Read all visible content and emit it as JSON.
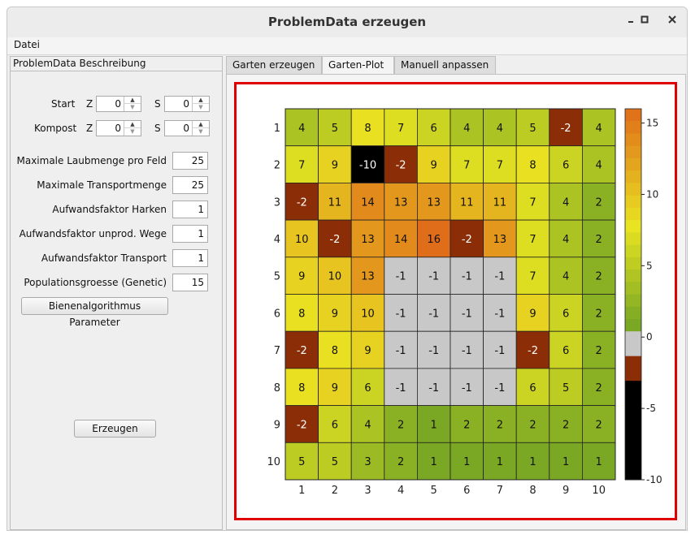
{
  "window": {
    "title": "ProblemData erzeugen",
    "minimize_icon": "minimize-icon",
    "maximize_icon": "maximize-icon",
    "close_icon": "close-icon"
  },
  "menu": {
    "file": "Datei"
  },
  "left": {
    "title": "ProblemData Beschreibung",
    "start_label": "Start",
    "kompost_label": "Kompost",
    "z_label": "Z",
    "s_label": "S",
    "start_z": "0",
    "start_s": "0",
    "kompost_z": "0",
    "kompost_s": "0",
    "params": [
      {
        "label": "Maximale Laubmenge pro Feld",
        "value": "25"
      },
      {
        "label": "Maximale Transportmenge",
        "value": "25"
      },
      {
        "label": "Aufwandsfaktor Harken",
        "value": "1"
      },
      {
        "label": "Aufwandsfaktor unprod. Wege",
        "value": "1"
      },
      {
        "label": "Aufwandsfaktor Transport",
        "value": "1"
      },
      {
        "label": "Populationsgroesse (Genetic)",
        "value": "15"
      }
    ],
    "bee_button": "Bienenalgorithmus Parameter",
    "generate_button": "Erzeugen"
  },
  "tabs": [
    "Garten erzeugen",
    "Garten-Plot",
    "Manuell anpassen"
  ],
  "active_tab": 1,
  "chart_data": {
    "type": "heatmap",
    "x_ticks": [
      "1",
      "2",
      "3",
      "4",
      "5",
      "6",
      "7",
      "8",
      "9",
      "10"
    ],
    "y_ticks": [
      "1",
      "2",
      "3",
      "4",
      "5",
      "6",
      "7",
      "8",
      "9",
      "10"
    ],
    "values": [
      [
        4,
        5,
        8,
        7,
        6,
        4,
        4,
        5,
        -2,
        4
      ],
      [
        7,
        9,
        -10,
        -2,
        9,
        7,
        7,
        8,
        6,
        4
      ],
      [
        -2,
        11,
        14,
        13,
        13,
        11,
        11,
        7,
        4,
        2
      ],
      [
        10,
        -2,
        13,
        14,
        16,
        -2,
        13,
        7,
        4,
        2
      ],
      [
        9,
        10,
        13,
        -1,
        -1,
        -1,
        -1,
        7,
        4,
        2
      ],
      [
        8,
        9,
        10,
        -1,
        -1,
        -1,
        -1,
        9,
        6,
        2
      ],
      [
        -2,
        8,
        9,
        -1,
        -1,
        -1,
        -1,
        -2,
        6,
        2
      ],
      [
        8,
        9,
        6,
        -1,
        -1,
        -1,
        -1,
        6,
        5,
        2
      ],
      [
        -2,
        6,
        4,
        2,
        1,
        2,
        2,
        2,
        2,
        2
      ],
      [
        5,
        5,
        3,
        2,
        1,
        1,
        1,
        1,
        1,
        1
      ]
    ],
    "colorbar_ticks": [
      "15",
      "10",
      "5",
      "0",
      "-5",
      "-10"
    ],
    "colorbar_tick_values": [
      15,
      10,
      5,
      0,
      -5,
      -10
    ],
    "vmin": -10,
    "vmax": 16,
    "colors": {
      "black": "#000000",
      "brown": "#8b2e08",
      "gray": "#c8c8c8",
      "green_low": "#7aa824",
      "yellow": "#e9e422",
      "orange": "#e06d1a"
    }
  }
}
